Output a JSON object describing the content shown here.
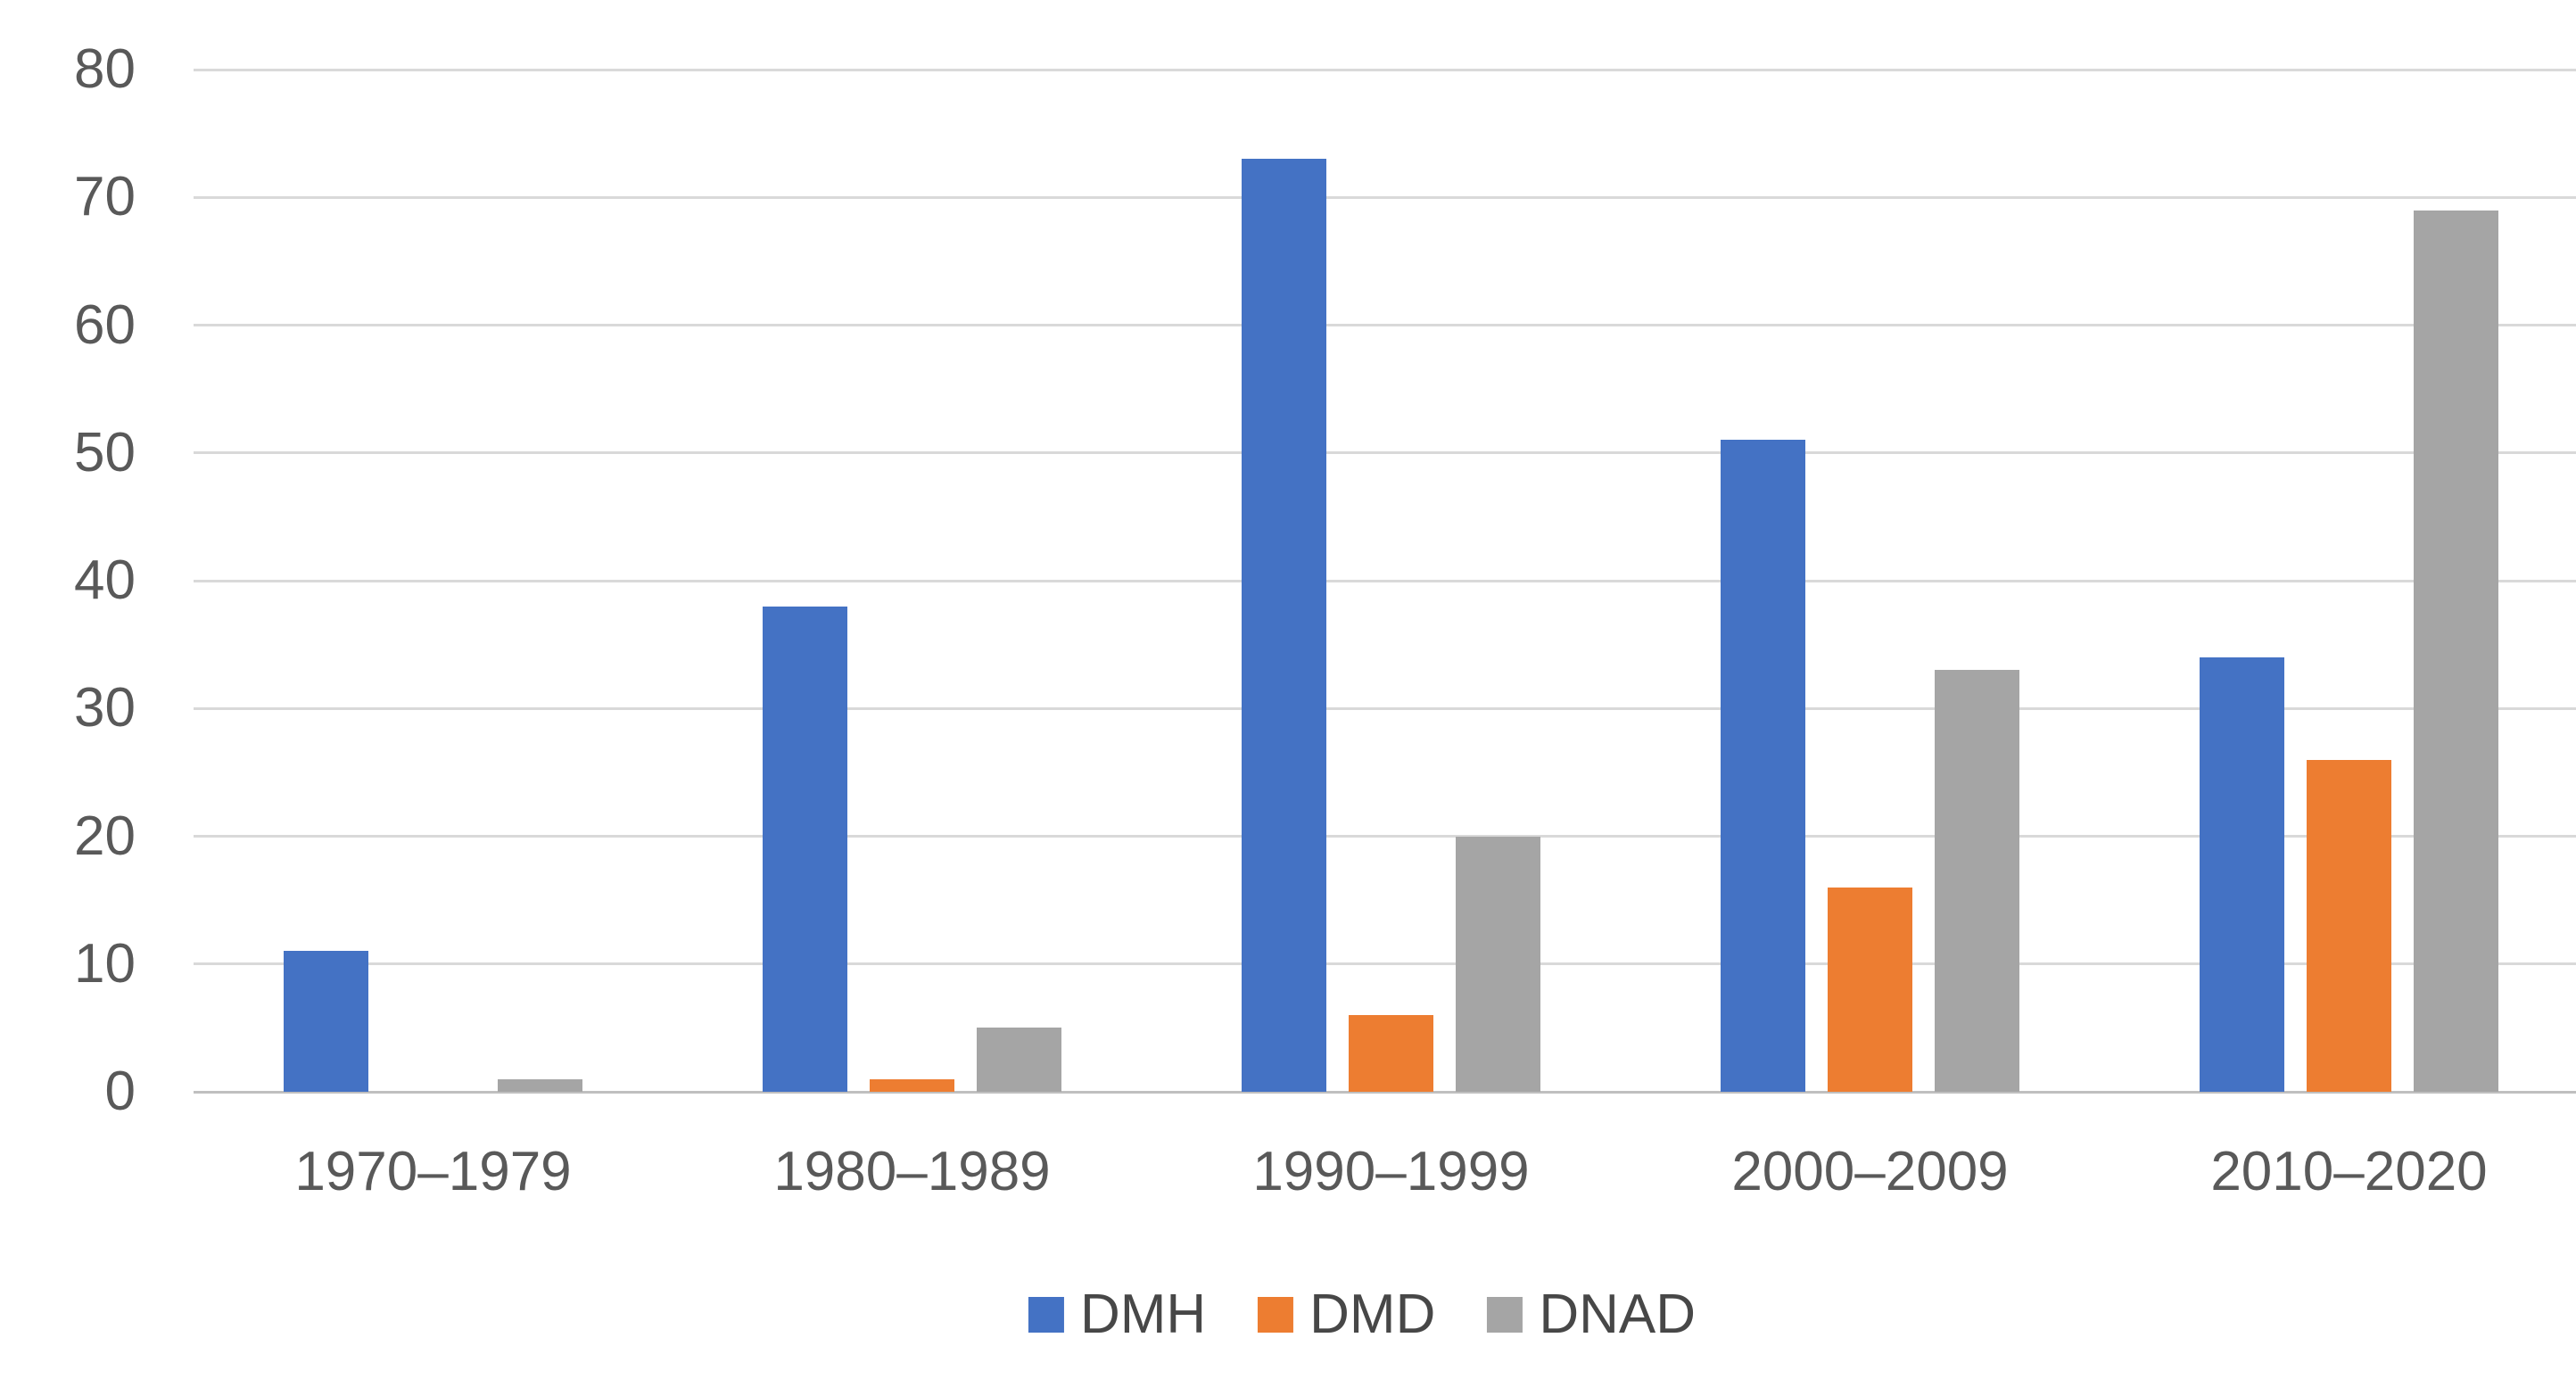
{
  "chart_data": {
    "type": "bar",
    "title": "",
    "xlabel": "",
    "ylabel": "",
    "categories": [
      "1970–1979",
      "1980–1989",
      "1990–1999",
      "2000–2009",
      "2010–2020"
    ],
    "series": [
      {
        "name": "DMH",
        "color": "#4472C4",
        "values": [
          11,
          38,
          73,
          51,
          34
        ]
      },
      {
        "name": "DMD",
        "color": "#ED7D31",
        "values": [
          0,
          1,
          6,
          16,
          26
        ]
      },
      {
        "name": "DNAD",
        "color": "#A5A5A5",
        "values": [
          1,
          5,
          20,
          33,
          69
        ]
      }
    ],
    "ylim": [
      0,
      80
    ],
    "ytick_step": 10,
    "ytick_labels": [
      "0",
      "10",
      "20",
      "30",
      "40",
      "50",
      "60",
      "70",
      "80"
    ],
    "grid": true,
    "legend_position": "bottom",
    "legend_labels": [
      "DMH",
      "DMD",
      "DNAD"
    ],
    "style": {
      "background": "#FFFFFF",
      "gridline_color": "#D9D9D9",
      "axis_line_color": "#BFBFBF",
      "tick_label_color": "#595959",
      "legend_text_color": "#474747"
    }
  }
}
